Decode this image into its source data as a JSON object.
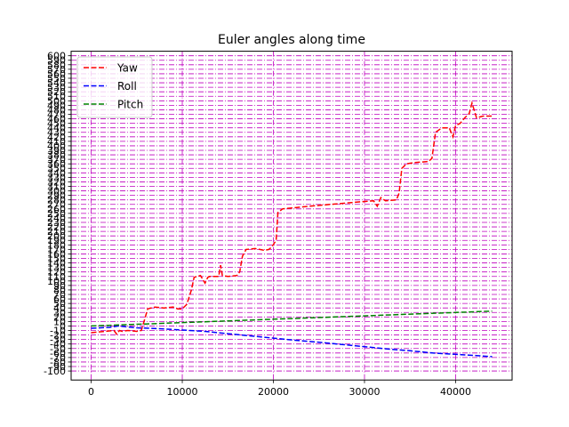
{
  "chart_data": {
    "type": "line",
    "title": "Euler angles along time",
    "xlabel": "",
    "ylabel": "",
    "xlim": [
      -2200,
      46200
    ],
    "ylim": [
      -120,
      610
    ],
    "legend_position": "upper-left",
    "grid": {
      "on": true,
      "color": "#bf00bf",
      "style": "dashdot",
      "x_ticks": [
        0,
        10000,
        20000,
        30000,
        40000
      ],
      "y_step": 10,
      "y_min": -100,
      "y_max": 600
    },
    "x_tick_labels": [
      "0",
      "10000",
      "20000",
      "30000",
      "40000"
    ],
    "y_tick_values": [
      -100,
      -90,
      -80,
      -70,
      -60,
      -50,
      -40,
      -30,
      -20,
      -10,
      0,
      10,
      20,
      30,
      40,
      50,
      60,
      70,
      80,
      90,
      100,
      110,
      120,
      130,
      140,
      150,
      160,
      170,
      180,
      190,
      200,
      210,
      220,
      230,
      240,
      250,
      260,
      270,
      280,
      290,
      300,
      310,
      320,
      330,
      340,
      350,
      360,
      370,
      380,
      390,
      400,
      410,
      420,
      430,
      440,
      450,
      460,
      470,
      480,
      490,
      500,
      510,
      520,
      530,
      540,
      550,
      560,
      570,
      580,
      590,
      600
    ],
    "series": [
      {
        "name": "Yaw",
        "color": "#ff0000",
        "x": [
          0,
          1500,
          2500,
          2800,
          3100,
          3400,
          4000,
          5000,
          5500,
          5800,
          6200,
          7000,
          8000,
          9000,
          9500,
          10000,
          10500,
          11000,
          11300,
          11600,
          12000,
          12500,
          12800,
          13000,
          13500,
          14000,
          14200,
          14400,
          15000,
          16000,
          16300,
          16600,
          17000,
          18000,
          19000,
          19500,
          19800,
          20300,
          20500,
          21000,
          24000,
          28000,
          31000,
          31400,
          31800,
          32300,
          33500,
          33800,
          34100,
          34600,
          35500,
          37000,
          37400,
          37800,
          38500,
          39300,
          39700,
          40000,
          40500,
          41000,
          41500,
          41800,
          42300,
          43000,
          44000
        ],
        "values": [
          -15,
          -12,
          -10,
          -18,
          -10,
          -12,
          -10,
          -12,
          -10,
          10,
          38,
          42,
          40,
          42,
          38,
          38,
          48,
          80,
          108,
          110,
          112,
          95,
          108,
          110,
          110,
          110,
          135,
          112,
          110,
          112,
          120,
          155,
          170,
          172,
          168,
          170,
          175,
          190,
          252,
          260,
          266,
          273,
          278,
          266,
          285,
          278,
          280,
          295,
          350,
          360,
          363,
          365,
          372,
          430,
          440,
          440,
          420,
          445,
          450,
          462,
          472,
          495,
          462,
          466,
          466
        ]
      },
      {
        "name": "Roll",
        "color": "#0000ff",
        "x": [
          0,
          2000,
          3000,
          4000,
          5000,
          7500,
          10000,
          12500,
          15000,
          17500,
          20000,
          22500,
          25000,
          27500,
          30000,
          32500,
          35000,
          37500,
          40000,
          42500,
          44000
        ],
        "values": [
          -5,
          -3,
          0,
          -2,
          -4,
          -6,
          -9,
          -12,
          -17,
          -22,
          -27,
          -32,
          -36,
          -41,
          -46,
          -51,
          -55,
          -60,
          -63,
          -66,
          -68
        ]
      },
      {
        "name": "Pitch",
        "color": "#008000",
        "x": [
          0,
          2000,
          4000,
          6000,
          8000,
          10000,
          12000,
          14000,
          16000,
          18000,
          20000,
          22000,
          24000,
          26000,
          28000,
          30000,
          32000,
          34000,
          36000,
          38000,
          40000,
          42000,
          44000
        ],
        "values": [
          0,
          1.5,
          3,
          4.5,
          6,
          7.5,
          9,
          10.5,
          12,
          13.5,
          15,
          16.5,
          18,
          19.5,
          21,
          22.5,
          24,
          25.5,
          27,
          28.5,
          30,
          31.5,
          33
        ]
      }
    ]
  }
}
